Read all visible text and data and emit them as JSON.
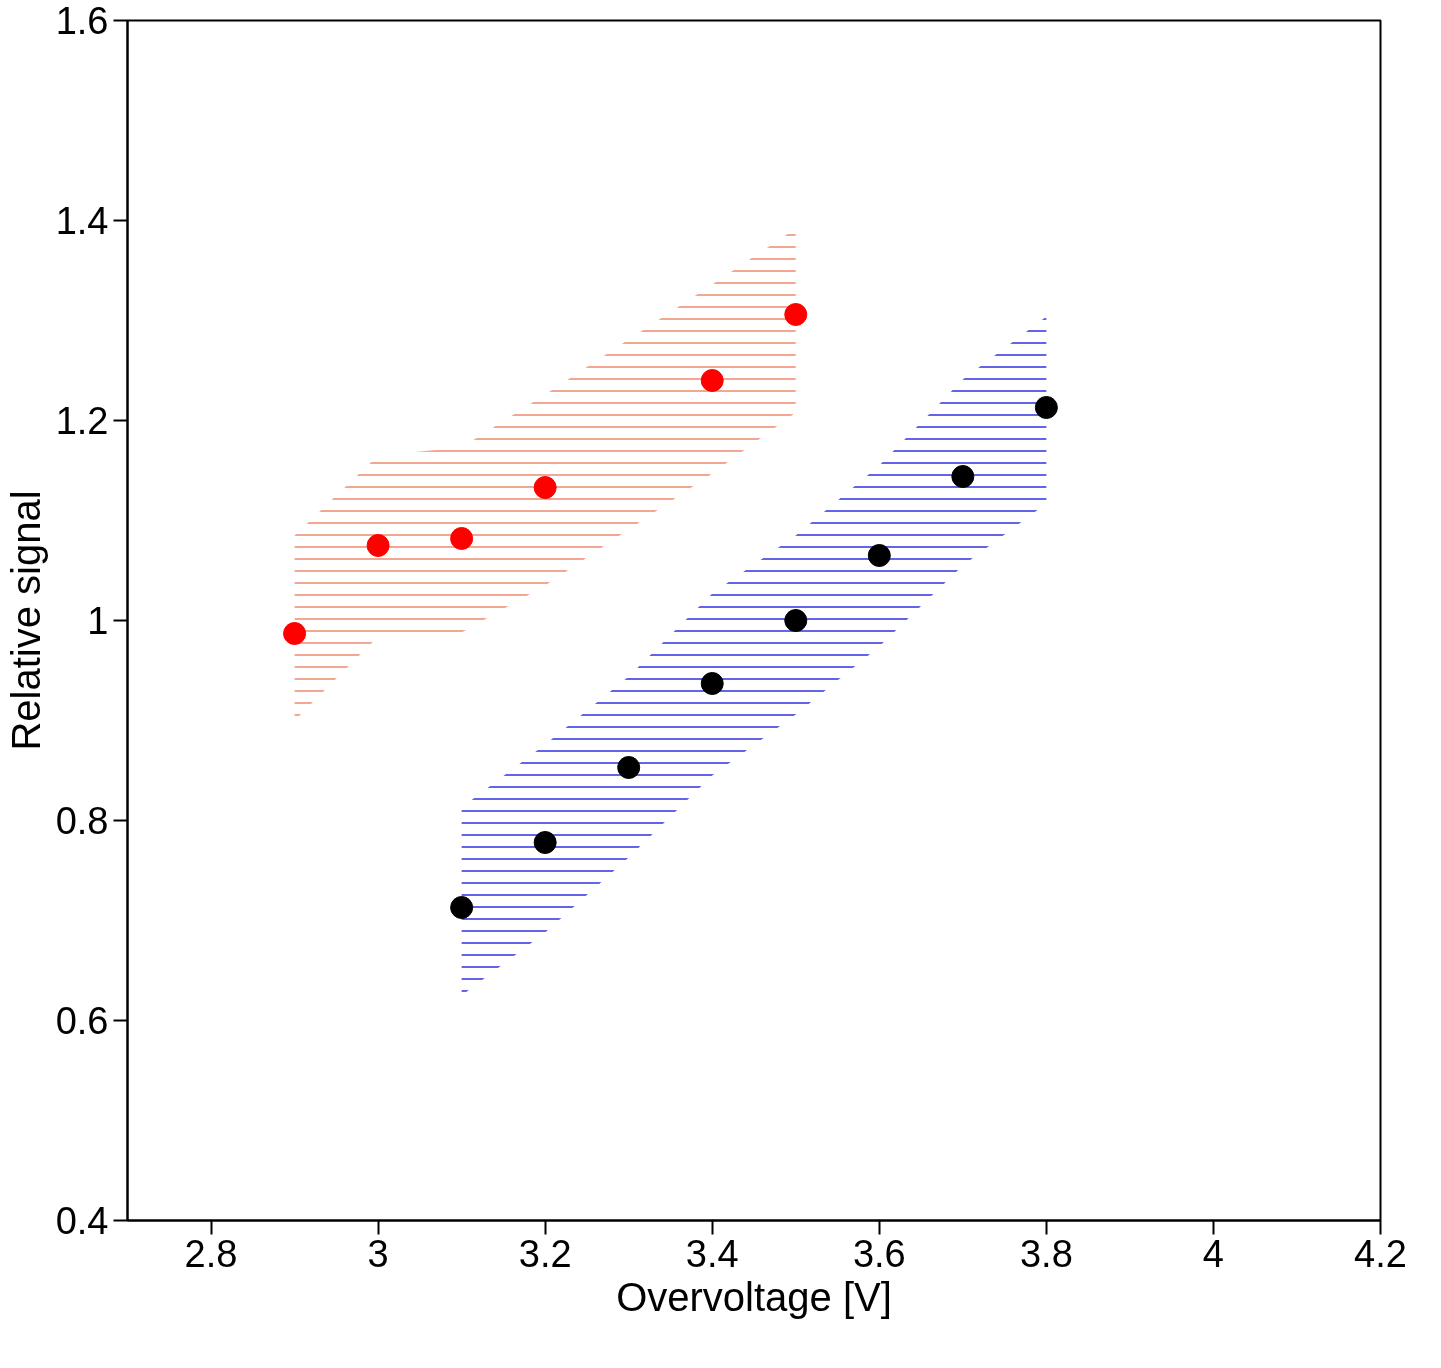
{
  "chart_data": {
    "type": "scatter",
    "xlabel": "Overvoltage [V]",
    "ylabel": "Relative signal",
    "xlim": [
      2.7,
      4.2
    ],
    "ylim": [
      0.4,
      1.6
    ],
    "xticks": [
      2.8,
      3,
      3.2,
      3.4,
      3.6,
      3.8,
      4,
      4.2
    ],
    "yticks": [
      0.4,
      0.6,
      0.8,
      1,
      1.2,
      1.4,
      1.6
    ],
    "marker": "circle",
    "series": [
      {
        "type": "area",
        "color": "#f08a6a",
        "x": [
          2.9,
          3.0,
          3.1,
          3.2,
          3.4,
          3.5
        ],
        "values": [
          null,
          null,
          null,
          null,
          null,
          null
        ],
        "lower": [
          0.9,
          0.984,
          0.988,
          1.035,
          1.147,
          1.208
        ],
        "upper": [
          1.085,
          1.165,
          1.173,
          1.226,
          1.336,
          1.392
        ]
      },
      {
        "type": "area",
        "color": "#3030e0",
        "x": [
          3.1,
          3.2,
          3.3,
          3.4,
          3.5,
          3.6,
          3.7,
          3.8
        ],
        "values": [
          null,
          null,
          null,
          null,
          null,
          null,
          null,
          null
        ],
        "lower": [
          0.625,
          0.688,
          0.763,
          0.845,
          0.906,
          0.974,
          1.055,
          1.117
        ],
        "upper": [
          0.813,
          0.876,
          0.944,
          1.027,
          1.085,
          1.155,
          1.241,
          1.304
        ]
      },
      {
        "color": "#ff0000",
        "x": [
          2.9,
          3.0,
          3.1,
          3.2,
          3.4,
          3.5
        ],
        "values": [
          0.987,
          1.075,
          1.082,
          1.133,
          1.24,
          1.306
        ]
      },
      {
        "color": "#000000",
        "x": [
          3.1,
          3.2,
          3.3,
          3.4,
          3.5,
          3.6,
          3.7,
          3.8
        ],
        "values": [
          0.713,
          0.778,
          0.853,
          0.937,
          1.0,
          1.065,
          1.144,
          1.213
        ]
      }
    ]
  }
}
